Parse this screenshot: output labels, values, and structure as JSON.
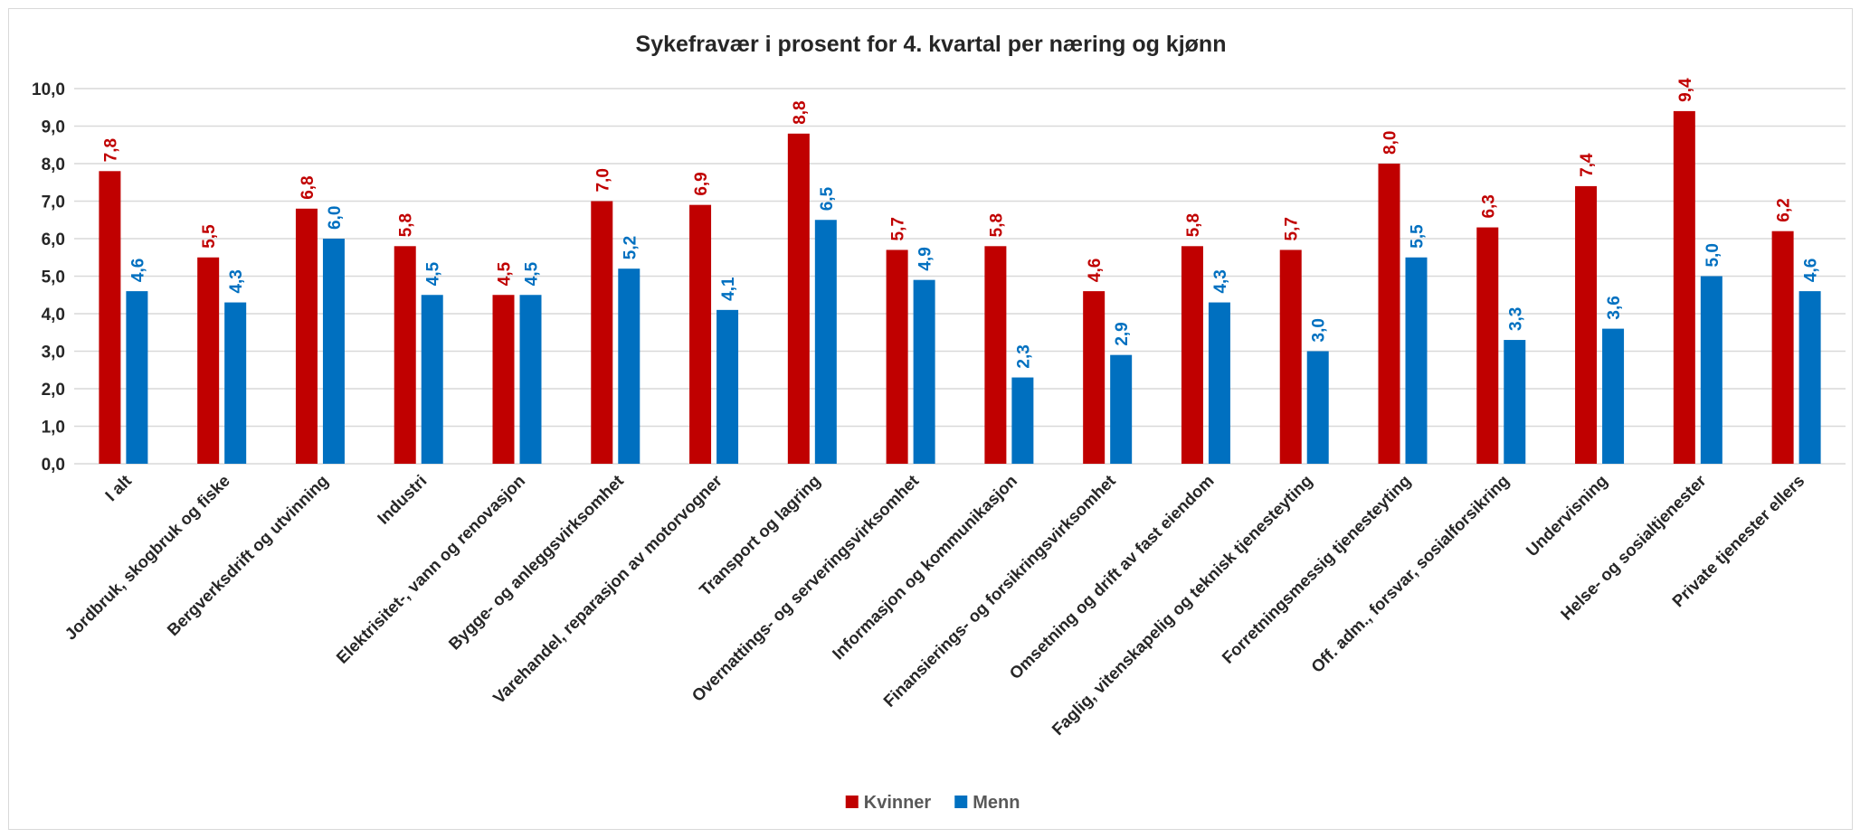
{
  "chart_data": {
    "type": "bar",
    "title": "Sykefravær i prosent for 4. kvartal per næring og kjønn",
    "categories": [
      "I alt",
      "Jordbruk, skogbruk og fiske",
      "Bergverksdrift og utvinning",
      "Industri",
      "Elektrisitet-, vann og renovasjon",
      "Bygge- og anleggsvirksomhet",
      "Varehandel, reparasjon av motorvogner",
      "Transport og lagring",
      "Overnattings- og serveringsvirksomhet",
      "Informasjon og kommunikasjon",
      "Finansierings- og forsikringsvirksomhet",
      "Omsetning og drift av fast eiendom",
      "Faglig, vitenskapelig og teknisk tjenesteyting",
      "Forretningsmessig tjenesteyting",
      "Off. adm., forsvar, sosialforsikring",
      "Undervisning",
      "Helse- og sosialtjenester",
      "Private tjenester ellers"
    ],
    "series": [
      {
        "name": "Kvinner",
        "color": "#C00000",
        "values": [
          7.8,
          5.5,
          6.8,
          5.8,
          4.5,
          7.0,
          6.9,
          8.8,
          5.7,
          5.8,
          4.6,
          5.8,
          5.7,
          8.0,
          6.3,
          7.4,
          9.4,
          6.2
        ],
        "labels": [
          "7,8",
          "5,5",
          "6,8",
          "5,8",
          "4,5",
          "7,0",
          "6,9",
          "8,8",
          "5,7",
          "5,8",
          "4,6",
          "5,8",
          "5,7",
          "8,0",
          "6,3",
          "7,4",
          "9,4",
          "6,2"
        ]
      },
      {
        "name": "Menn",
        "color": "#0070C0",
        "values": [
          4.6,
          4.3,
          6.0,
          4.5,
          4.5,
          5.2,
          4.1,
          6.5,
          4.9,
          2.3,
          2.9,
          4.3,
          3.0,
          5.5,
          3.3,
          3.6,
          5.0,
          4.6
        ],
        "labels": [
          "4,6",
          "4,3",
          "6,0",
          "4,5",
          "4,5",
          "5,2",
          "4,1",
          "6,5",
          "4,9",
          "2,3",
          "2,9",
          "4,3",
          "3,0",
          "5,5",
          "3,3",
          "3,6",
          "5,0",
          "4,6"
        ]
      }
    ],
    "ylim": [
      0,
      10
    ],
    "yticks": [
      "0,0",
      "1,0",
      "2,0",
      "3,0",
      "4,0",
      "5,0",
      "6,0",
      "7,0",
      "8,0",
      "9,0",
      "10,0"
    ],
    "grid": true,
    "legend": "bottom-center"
  }
}
